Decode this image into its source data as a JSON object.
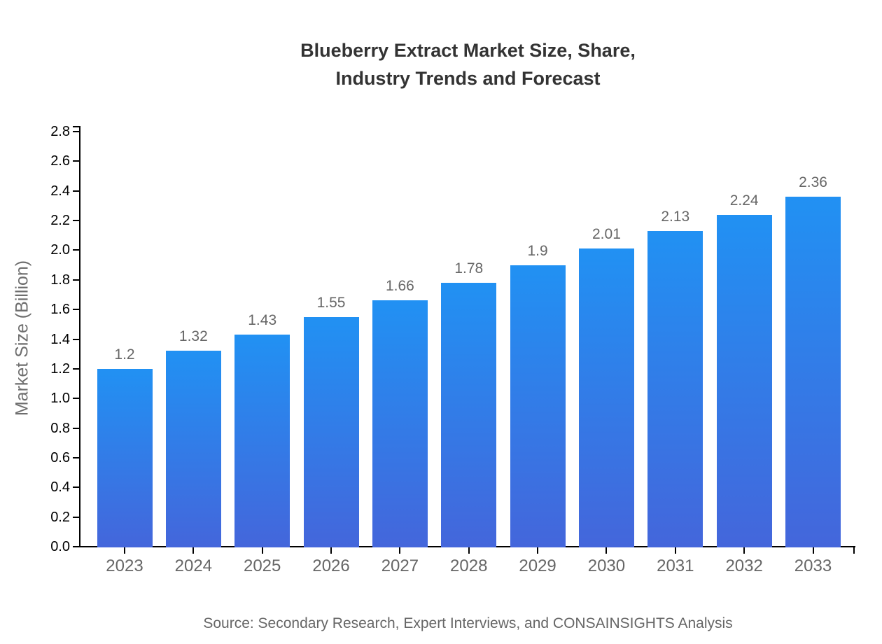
{
  "chart_data": {
    "type": "bar",
    "title": "Blueberry Extract Market Size, Share, Industry Trends and Forecast",
    "title_lines": [
      "Blueberry Extract Market Size, Share,",
      "Industry Trends and Forecast"
    ],
    "categories": [
      "2023",
      "2024",
      "2025",
      "2026",
      "2027",
      "2028",
      "2029",
      "2030",
      "2031",
      "2032",
      "2033"
    ],
    "values": [
      1.2,
      1.32,
      1.43,
      1.55,
      1.66,
      1.78,
      1.9,
      2.01,
      2.13,
      2.24,
      2.36
    ],
    "value_labels": [
      "1.2",
      "1.32",
      "1.43",
      "1.55",
      "1.66",
      "1.78",
      "1.9",
      "2.01",
      "2.13",
      "2.24",
      "2.36"
    ],
    "xlabel": "",
    "ylabel": "Market Size (Billion)",
    "ylim": [
      0,
      2.8
    ],
    "ytick_step": 0.2,
    "ytick_labels": [
      "0.0",
      "0.2",
      "0.4",
      "0.6",
      "0.8",
      "1.0",
      "1.2",
      "1.4",
      "1.6",
      "1.8",
      "2.0",
      "2.2",
      "2.4",
      "2.6",
      "2.8"
    ],
    "grid": false,
    "legend": false,
    "source": "Source: Secondary Research, Expert Interviews, and CONSAINSIGHTS Analysis",
    "colors": {
      "bar_gradient_top": "#2191F3",
      "bar_gradient_bottom": "#4466DB",
      "title": "#333333",
      "axis_line": "#000000",
      "ytick_label": "#000000",
      "xtick_label": "#666666",
      "value_label": "#666666",
      "ylabel": "#6e6e6e",
      "source": "#666666",
      "background": "#ffffff"
    }
  }
}
